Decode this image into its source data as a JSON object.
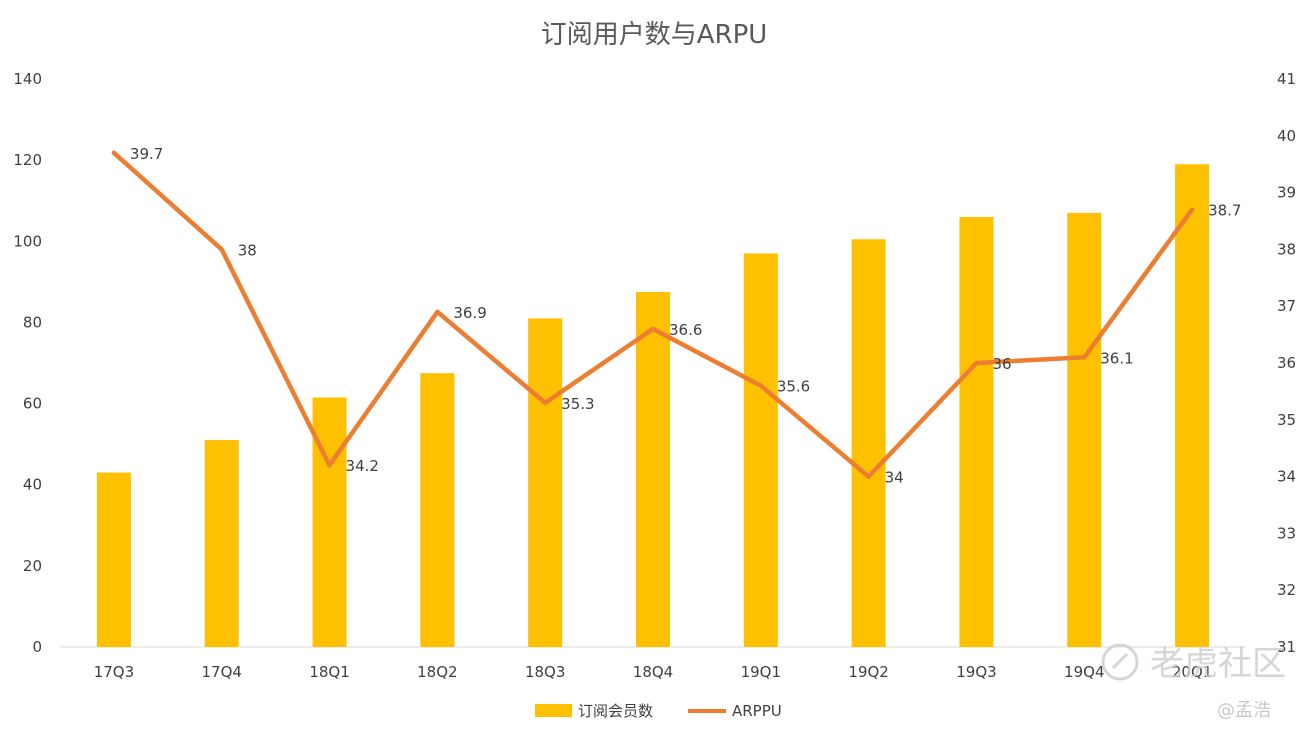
{
  "chart_data": {
    "type": "bar",
    "title": "订阅用户数与ARPU",
    "categories": [
      "17Q3",
      "17Q4",
      "18Q1",
      "18Q2",
      "18Q3",
      "18Q4",
      "19Q1",
      "19Q2",
      "19Q3",
      "19Q4",
      "20Q1"
    ],
    "series": [
      {
        "name": "订阅会员数",
        "type": "bar",
        "axis": "left",
        "color": "#FFC000",
        "values": [
          43,
          51,
          61.5,
          67.5,
          81,
          87.5,
          97,
          100.5,
          106,
          107,
          119
        ]
      },
      {
        "name": "ARPPU",
        "type": "line",
        "axis": "right",
        "color": "#ED7D31",
        "values": [
          39.7,
          38,
          34.2,
          36.9,
          35.3,
          36.6,
          35.6,
          34,
          36,
          36.1,
          38.7
        ],
        "data_labels": [
          "39.7",
          "38",
          "34.2",
          "36.9",
          "35.3",
          "36.6",
          "35.6",
          "34",
          "36",
          "36.1",
          "38.7"
        ]
      }
    ],
    "y_left": {
      "range": [
        0,
        140
      ],
      "ticks": [
        "0",
        "20",
        "40",
        "60",
        "80",
        "100",
        "120",
        "140"
      ]
    },
    "y_right": {
      "range": [
        31,
        41
      ],
      "ticks": [
        "31",
        "32",
        "33",
        "34",
        "35",
        "36",
        "37",
        "38",
        "39",
        "40",
        "41"
      ]
    },
    "grid": false,
    "legend_position": "bottom"
  },
  "watermark": {
    "brand": "老虎社区",
    "author": "@孟浩"
  }
}
